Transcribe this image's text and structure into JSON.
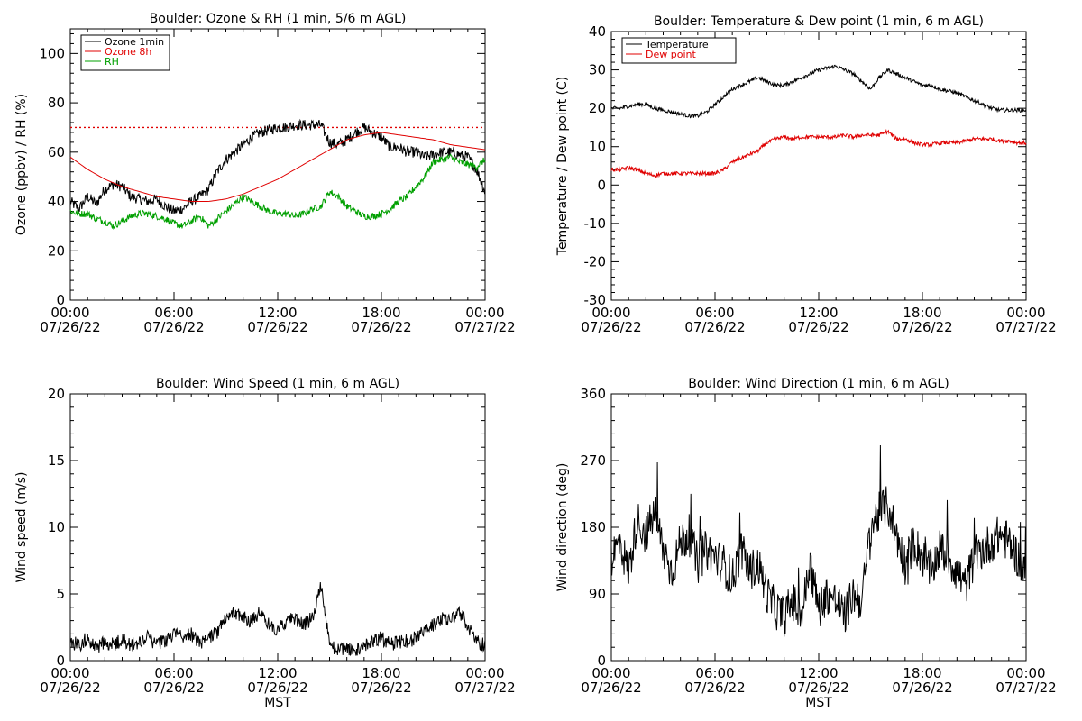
{
  "chart_data": [
    {
      "id": "ozone",
      "type": "line",
      "title": "Boulder: Ozone & RH (1 min, 5/6 m AGL)",
      "xlabel": "",
      "ylabel": "Ozone (ppbv) / RH (%)",
      "ylim": [
        0,
        110
      ],
      "yticks": [
        "0",
        "20",
        "40",
        "60",
        "80",
        "100"
      ],
      "ytick_values": [
        0,
        20,
        40,
        60,
        80,
        100
      ],
      "xlim": [
        0,
        24
      ],
      "xticks": [
        {
          "time": "00:00",
          "date": "07/26/22"
        },
        {
          "time": "06:00",
          "date": "07/26/22"
        },
        {
          "time": "12:00",
          "date": "07/26/22"
        },
        {
          "time": "18:00",
          "date": "07/26/22"
        },
        {
          "time": "00:00",
          "date": "07/27/22"
        }
      ],
      "legend": "top-left",
      "reference_line": {
        "y": 70,
        "color": "#e00000",
        "style": "dotted"
      },
      "series": [
        {
          "name": "Ozone 1min",
          "color": "#000000",
          "x": [
            0,
            0.5,
            1,
            1.5,
            2,
            2.5,
            3,
            3.5,
            4,
            4.5,
            5,
            5.5,
            6,
            6.5,
            7,
            7.5,
            8,
            8.5,
            9,
            9.5,
            10,
            10.5,
            11,
            11.5,
            12,
            12.5,
            13,
            13.5,
            14,
            14.5,
            15,
            15.5,
            16,
            16.5,
            17,
            17.5,
            18,
            18.5,
            19,
            19.5,
            20,
            20.5,
            21,
            21.5,
            22,
            22.5,
            23,
            23.5,
            24
          ],
          "y": [
            40,
            37,
            42,
            39,
            45,
            47,
            46,
            42,
            41,
            40,
            41,
            38,
            36,
            37,
            40,
            42,
            45,
            52,
            57,
            60,
            63,
            66,
            68,
            69,
            70,
            70,
            71,
            71,
            71,
            71,
            64,
            63,
            65,
            68,
            70,
            68,
            66,
            62,
            62,
            60,
            60,
            58,
            59,
            60,
            60,
            59,
            58,
            53,
            44
          ]
        },
        {
          "name": "Ozone 8h",
          "color": "#e00000",
          "x": [
            0,
            1,
            2,
            3,
            4,
            5,
            6,
            7,
            8,
            9,
            10,
            11,
            12,
            13,
            14,
            15,
            16,
            17,
            18,
            19,
            20,
            21,
            22,
            23,
            24
          ],
          "y": [
            58,
            53,
            49,
            46,
            44,
            42,
            41,
            40,
            40,
            41,
            43,
            46,
            49,
            53,
            57,
            61,
            65,
            67,
            68,
            67,
            66,
            65,
            63,
            62,
            61
          ]
        },
        {
          "name": "RH",
          "color": "#00a000",
          "x": [
            0,
            0.5,
            1,
            1.5,
            2,
            2.5,
            3,
            3.5,
            4,
            4.5,
            5,
            5.5,
            6,
            6.5,
            7,
            7.5,
            8,
            8.5,
            9,
            9.5,
            10,
            10.5,
            11,
            11.5,
            12,
            12.5,
            13,
            13.5,
            14,
            14.5,
            15,
            15.5,
            16,
            16.5,
            17,
            17.5,
            18,
            18.5,
            19,
            19.5,
            20,
            20.5,
            21,
            21.5,
            22,
            22.5,
            23,
            23.5,
            24
          ],
          "y": [
            36,
            35,
            35,
            33,
            32,
            30,
            32,
            34,
            35,
            35,
            34,
            33,
            31,
            30,
            32,
            34,
            30,
            33,
            36,
            39,
            42,
            40,
            38,
            36,
            35,
            35,
            34,
            35,
            37,
            38,
            44,
            42,
            38,
            36,
            34,
            34,
            35,
            37,
            40,
            42,
            46,
            50,
            56,
            57,
            58,
            56,
            55,
            54,
            57
          ]
        }
      ]
    },
    {
      "id": "temp",
      "type": "line",
      "title": "Boulder: Temperature & Dew point (1 min, 6 m AGL)",
      "xlabel": "",
      "ylabel": "Temperature / Dew point (C)",
      "ylim": [
        -30,
        40
      ],
      "yticks": [
        "-30",
        "-20",
        "-10",
        "0",
        "10",
        "20",
        "30",
        "40"
      ],
      "ytick_values": [
        -30,
        -20,
        -10,
        0,
        10,
        20,
        30,
        40
      ],
      "xlim": [
        0,
        24
      ],
      "xticks": [
        {
          "time": "00:00",
          "date": "07/26/22"
        },
        {
          "time": "06:00",
          "date": "07/26/22"
        },
        {
          "time": "12:00",
          "date": "07/26/22"
        },
        {
          "time": "18:00",
          "date": "07/26/22"
        },
        {
          "time": "00:00",
          "date": "07/27/22"
        }
      ],
      "legend": "top-left",
      "series": [
        {
          "name": "Temperature",
          "color": "#000000",
          "x": [
            0,
            0.5,
            1,
            1.5,
            2,
            2.5,
            3,
            3.5,
            4,
            4.5,
            5,
            5.5,
            6,
            6.5,
            7,
            7.5,
            8,
            8.5,
            9,
            9.5,
            10,
            10.5,
            11,
            11.5,
            12,
            12.5,
            13,
            13.5,
            14,
            14.5,
            15,
            15.5,
            16,
            16.5,
            17,
            17.5,
            18,
            18.5,
            19,
            19.5,
            20,
            20.5,
            21,
            21.5,
            22,
            22.5,
            23,
            23.5,
            24
          ],
          "y": [
            20,
            20,
            20.5,
            21,
            21,
            20,
            19.5,
            19,
            18.5,
            18,
            18,
            19,
            21,
            23,
            25,
            26,
            27,
            28,
            27,
            26,
            26,
            27,
            28,
            29,
            30,
            30.5,
            31,
            30,
            29,
            27,
            25,
            28,
            30,
            29,
            28,
            27,
            26,
            26,
            25,
            24.5,
            24,
            23,
            22,
            21,
            20,
            19.5,
            19.5,
            19.5,
            19.5
          ]
        },
        {
          "name": "Dew point",
          "color": "#e00000",
          "x": [
            0,
            0.5,
            1,
            1.5,
            2,
            2.5,
            3,
            3.5,
            4,
            4.5,
            5,
            5.5,
            6,
            6.5,
            7,
            7.5,
            8,
            8.5,
            9,
            9.5,
            10,
            10.5,
            11,
            11.5,
            12,
            12.5,
            13,
            13.5,
            14,
            14.5,
            15,
            15.5,
            16,
            16.5,
            17,
            17.5,
            18,
            18.5,
            19,
            19.5,
            20,
            20.5,
            21,
            21.5,
            22,
            22.5,
            23,
            23.5,
            24
          ],
          "y": [
            4,
            4,
            4.5,
            4,
            3,
            2.5,
            3,
            3,
            3,
            3,
            3,
            3,
            3,
            4,
            6,
            7,
            8,
            9,
            11,
            12,
            12.5,
            12,
            12.5,
            12.5,
            12.5,
            12.5,
            12.5,
            13,
            12.5,
            13,
            13,
            13,
            14,
            12,
            12,
            11,
            10.5,
            10.5,
            11,
            11,
            11,
            11.5,
            12,
            12,
            12,
            11.5,
            11.5,
            11,
            11
          ]
        }
      ]
    },
    {
      "id": "wspd",
      "type": "line",
      "title": "Boulder: Wind Speed (1 min, 6 m AGL)",
      "xlabel": "MST",
      "ylabel": "Wind speed (m/s)",
      "ylim": [
        0,
        20
      ],
      "yticks": [
        "0",
        "5",
        "10",
        "15",
        "20"
      ],
      "ytick_values": [
        0,
        5,
        10,
        15,
        20
      ],
      "xlim": [
        0,
        24
      ],
      "xticks": [
        {
          "time": "00:00",
          "date": "07/26/22"
        },
        {
          "time": "06:00",
          "date": "07/26/22"
        },
        {
          "time": "12:00",
          "date": "07/26/22"
        },
        {
          "time": "18:00",
          "date": "07/26/22"
        },
        {
          "time": "00:00",
          "date": "07/27/22"
        }
      ],
      "series": [
        {
          "name": "",
          "color": "#000000",
          "x": [
            0,
            0.5,
            1,
            1.5,
            2,
            2.5,
            3,
            3.5,
            4,
            4.5,
            5,
            5.5,
            6,
            6.5,
            7,
            7.5,
            8,
            8.5,
            9,
            9.5,
            10,
            10.5,
            11,
            11.5,
            12,
            12.5,
            13,
            13.5,
            14,
            14.5,
            15,
            15.5,
            16,
            16.5,
            17,
            17.5,
            18,
            18.5,
            19,
            19.5,
            20,
            20.5,
            21,
            21.5,
            22,
            22.5,
            23,
            23.5,
            24
          ],
          "y": [
            1.2,
            1.0,
            1.5,
            0.8,
            1.2,
            1.0,
            1.4,
            1.0,
            1.2,
            1.6,
            1.0,
            1.3,
            1.8,
            1.5,
            1.8,
            1.2,
            1.5,
            2.0,
            3.0,
            3.5,
            3.0,
            2.8,
            3.5,
            2.5,
            2.0,
            2.8,
            3.0,
            2.5,
            3.0,
            5.5,
            1.0,
            0.6,
            0.8,
            0.5,
            1.0,
            1.2,
            1.5,
            1.0,
            1.2,
            1.3,
            1.5,
            2.0,
            2.5,
            3.0,
            2.8,
            3.5,
            2.5,
            1.2,
            1.0
          ]
        }
      ]
    },
    {
      "id": "wdir",
      "type": "line",
      "title": "Boulder: Wind Direction (1 min, 6 m AGL)",
      "xlabel": "MST",
      "ylabel": "Wind direction (deg)",
      "ylim": [
        0,
        360
      ],
      "yticks": [
        "0",
        "90",
        "180",
        "270",
        "360"
      ],
      "ytick_values": [
        0,
        90,
        180,
        270,
        360
      ],
      "xlim": [
        0,
        24
      ],
      "xticks": [
        {
          "time": "00:00",
          "date": "07/26/22"
        },
        {
          "time": "06:00",
          "date": "07/26/22"
        },
        {
          "time": "12:00",
          "date": "07/26/22"
        },
        {
          "time": "18:00",
          "date": "07/26/22"
        },
        {
          "time": "00:00",
          "date": "07/27/22"
        }
      ],
      "series": [
        {
          "name": "",
          "color": "#000000",
          "x": [
            0,
            0.5,
            1,
            1.5,
            2,
            2.5,
            3,
            3.5,
            4,
            4.5,
            5,
            5.5,
            6,
            6.5,
            7,
            7.5,
            8,
            8.5,
            9,
            9.5,
            10,
            10.5,
            11,
            11.5,
            12,
            12.5,
            13,
            13.5,
            14,
            14.5,
            15,
            15.5,
            16,
            16.5,
            17,
            17.5,
            18,
            18.5,
            19,
            19.5,
            20,
            20.5,
            21,
            21.5,
            22,
            22.5,
            23,
            23.5,
            24
          ],
          "y": [
            140,
            160,
            120,
            190,
            170,
            200,
            150,
            120,
            160,
            170,
            130,
            150,
            140,
            130,
            110,
            150,
            120,
            130,
            90,
            70,
            60,
            80,
            60,
            130,
            70,
            90,
            80,
            60,
            90,
            80,
            180,
            200,
            210,
            170,
            130,
            160,
            140,
            120,
            150,
            140,
            120,
            100,
            140,
            150,
            160,
            170,
            160,
            140,
            120
          ]
        }
      ]
    }
  ]
}
